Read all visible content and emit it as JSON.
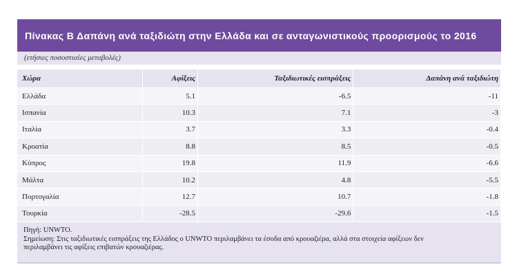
{
  "title": "Πίνακας Β Δαπάνη ανά ταξιδιώτη στην Ελλάδα και σε ανταγωνιστικούς προορισμούς το 2016",
  "subtitle": "(ετήσιες ποσοστιαίες μεταβολές)",
  "colors": {
    "title_bar": "#6e4b9e",
    "header_bg": "#e6e2ef",
    "row_bg": "#f5f4f8"
  },
  "table": {
    "headers": [
      "Χώρα",
      "Αφίξεις",
      "Ταξιδιωτικές εισπράξεις",
      "Δαπάνη ανά ταξιδιώτη"
    ],
    "rows": [
      [
        "Ελλάδα",
        "5.1",
        "-6.5",
        "-11"
      ],
      [
        "Ισπανία",
        "10.3",
        "7.1",
        "-3"
      ],
      [
        "Ιταλία",
        "3.7",
        "3.3",
        "-0.4"
      ],
      [
        "Κροατία",
        "8.8",
        "8.5",
        "-0.5"
      ],
      [
        "Κύπρος",
        "19.8",
        "11.9",
        "-6.6"
      ],
      [
        "Μάλτα",
        "10.2",
        "4.8",
        "-5.5"
      ],
      [
        "Πορτογαλία",
        "12.7",
        "10.7",
        "-1.8"
      ],
      [
        "Τουρκία",
        "-28.5",
        "-29.6",
        "-1.5"
      ]
    ]
  },
  "notes": {
    "source": "Πηγή: UNWTO.",
    "note_line1": "Σημείωση: Στις ταξιδιωτικές εισπράξεις της Ελλάδος ο UNWTO περιλαμβάνει τα έσοδα από κρουαζιέρα, αλλά στα στοιχεία αφίξεων δεν",
    "note_line2": "περιλαμβάνει τις αφίξεις επιβατών κρουαζιέρας."
  }
}
